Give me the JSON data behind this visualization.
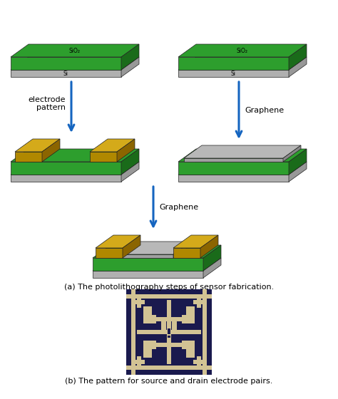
{
  "caption_a": "(a) The photolithography steps of sensor fabrication.",
  "caption_b": "(b) The pattern for source and drain electrode pairs.",
  "bg_color": "#ffffff",
  "green_top": "#2d9e2d",
  "green_side_right": "#1a6b1a",
  "green_side_left": "#1a6b1a",
  "green_front": "#2d9e2d",
  "si_top": "#c8c8c8",
  "si_front": "#b0b0b0",
  "si_side": "#989898",
  "gold_top": "#d4aa1a",
  "gold_front": "#b08800",
  "gold_side": "#8b6500",
  "graphene_top": "#b8b8b8",
  "graphene_front": "#a0a0a0",
  "graphene_side": "#888888",
  "arrow_color": "#1565c0",
  "dark_navy": "#1a1a55",
  "cream_track": "#d4c990",
  "label_electrode": "electrode\npattern",
  "label_graphene1": "Graphene",
  "label_graphene2": "Graphene",
  "sio2_label": "SiO₂",
  "si_label": "Si"
}
